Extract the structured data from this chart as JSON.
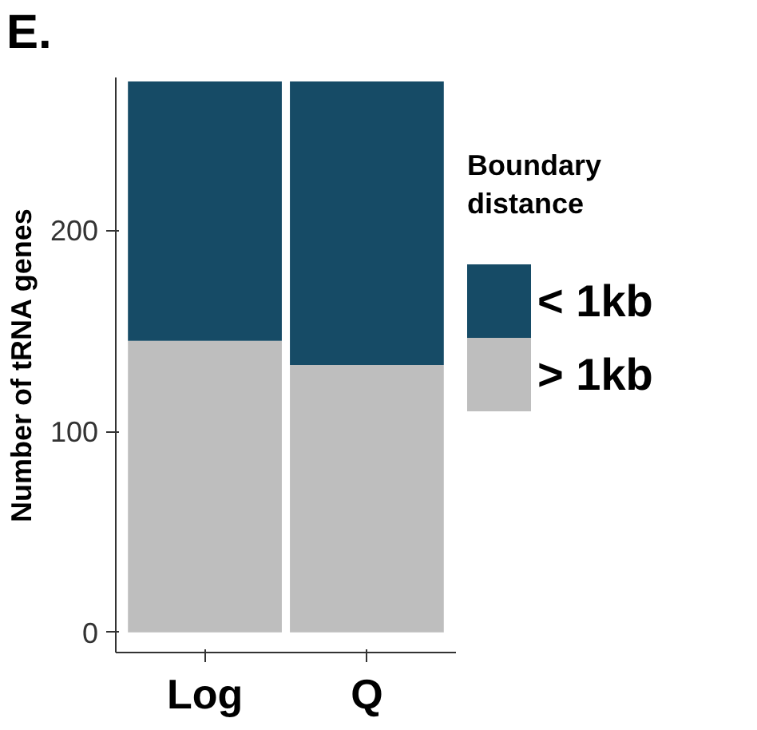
{
  "chart_data": {
    "type": "bar",
    "stacked": true,
    "categories": [
      "Log",
      "Q"
    ],
    "ylabel": "Number of tRNA genes",
    "legend_title": "Boundary distance",
    "legend": "right",
    "ylim": [
      -10,
      276
    ],
    "yticks": [
      0,
      100,
      200
    ],
    "grid": false,
    "annotations": [
      "E."
    ],
    "series": [
      {
        "name": "> 1kb",
        "color": "#bebebe",
        "values": [
          145,
          133
        ]
      },
      {
        "name": "< 1kb",
        "color": "#164b66",
        "values": [
          129,
          141
        ]
      }
    ]
  }
}
